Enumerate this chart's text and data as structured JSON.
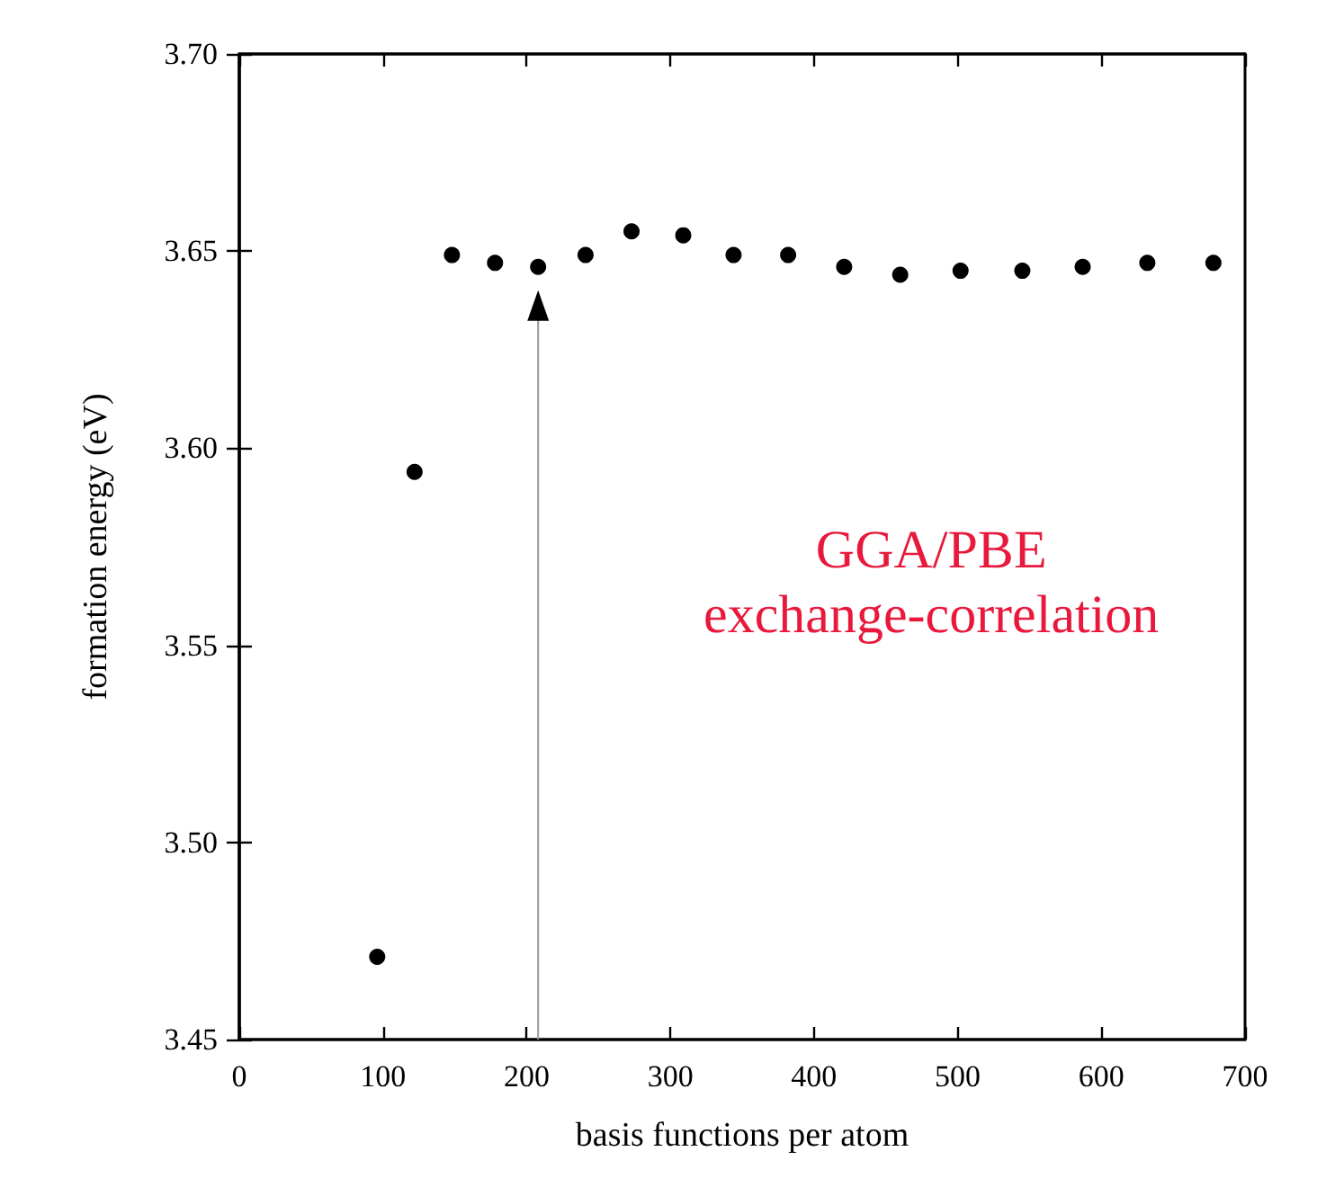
{
  "chart_data": {
    "type": "scatter",
    "xlabel": "basis functions per atom",
    "ylabel": "formation energy (eV)",
    "x": [
      96,
      122,
      148,
      178,
      208,
      241,
      273,
      309,
      344,
      382,
      421,
      460,
      502,
      545,
      587,
      632,
      678
    ],
    "values": [
      3.471,
      3.594,
      3.649,
      3.647,
      3.646,
      3.649,
      3.655,
      3.654,
      3.649,
      3.649,
      3.646,
      3.644,
      3.645,
      3.645,
      3.646,
      3.647,
      3.647
    ],
    "color": "#000000",
    "marker": "circle",
    "xlim": [
      0,
      700
    ],
    "xticks": [
      0,
      100,
      200,
      300,
      400,
      500,
      600,
      700
    ],
    "ylim": [
      3.45,
      3.7
    ],
    "yticks": [
      3.45,
      {
        "value": 3.5,
        "label": "3.50"
      },
      3.55,
      {
        "value": 3.6,
        "label": "3.60"
      },
      3.65,
      {
        "value": 3.7,
        "label": "3.70"
      }
    ],
    "annotations": [
      "GGA/PBE\nexchange-correlation"
    ]
  }
}
